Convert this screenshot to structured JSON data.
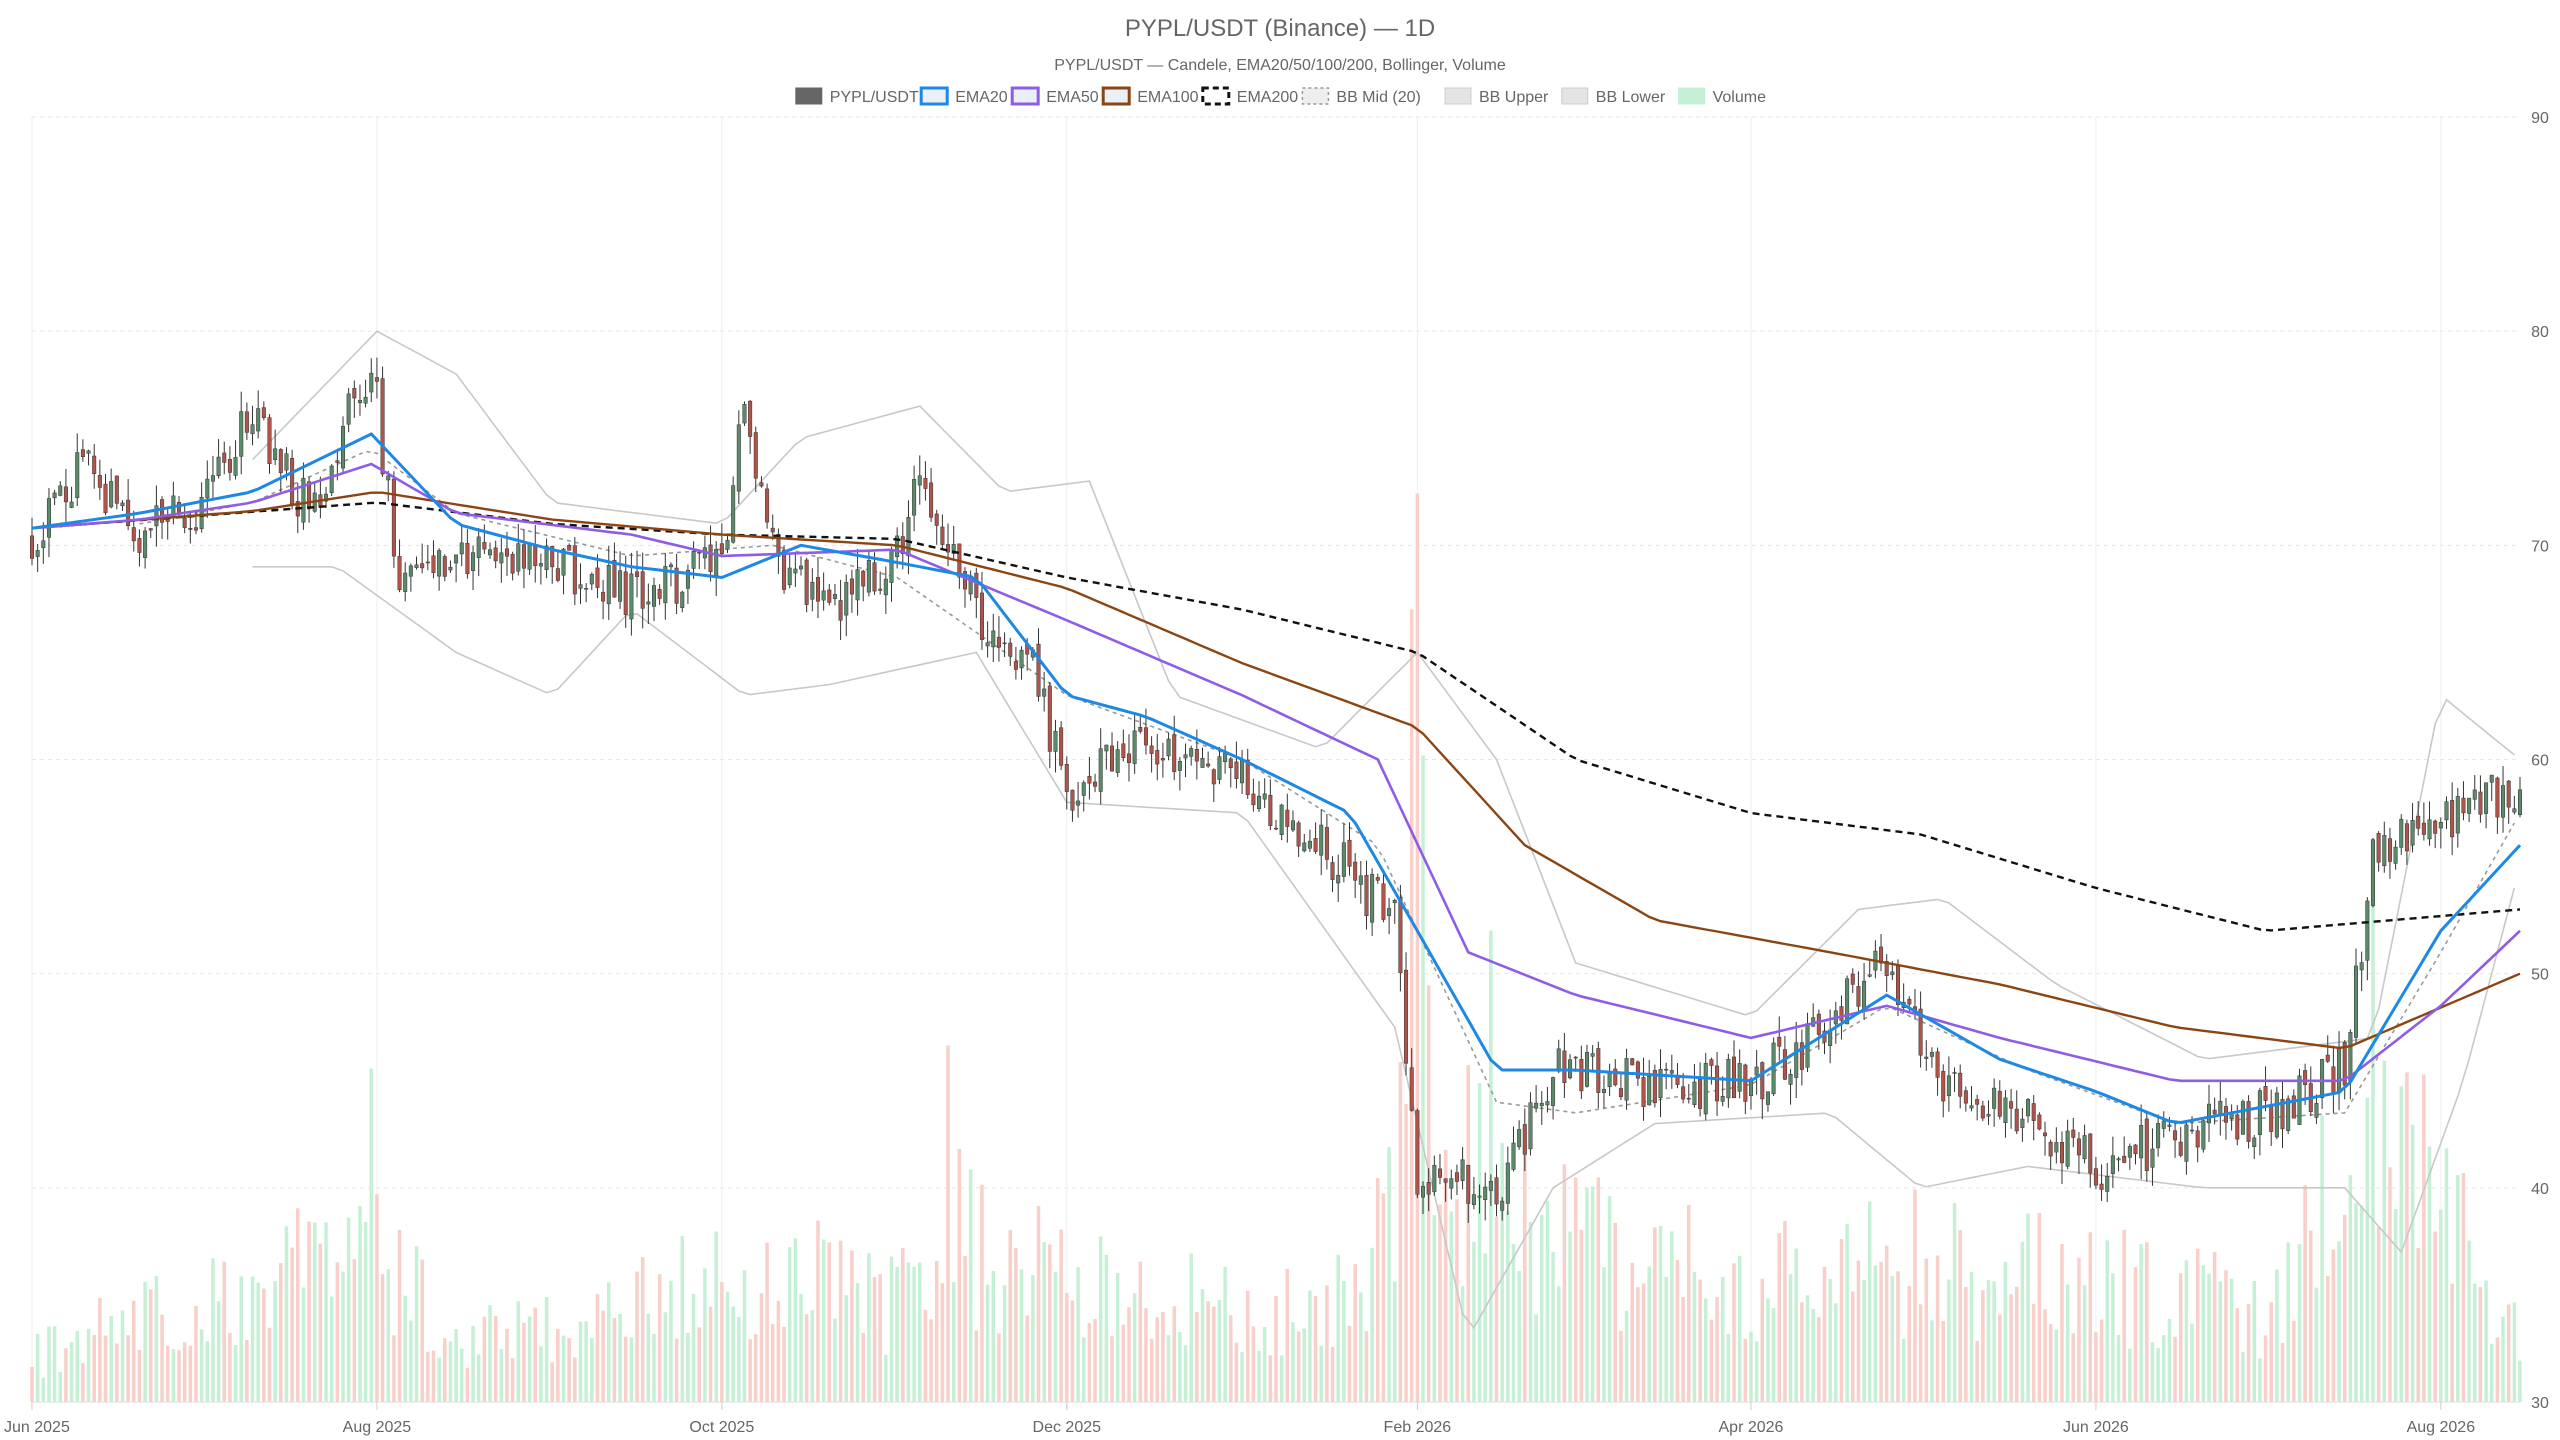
{
  "chart_data": {
    "type": "candlestick",
    "title": "PYPL/USDT (Binance) — 1D",
    "subtitle": "PYPL/USDT — Candele, EMA20/50/100/200, Bollinger, Volume",
    "legend": {
      "placement": "top-center",
      "items": [
        {
          "label": "PYPL/USDT",
          "swatch": "solid",
          "color": "#666666"
        },
        {
          "label": "EMA20",
          "swatch": "outline",
          "color": "#1e88e5"
        },
        {
          "label": "EMA50",
          "swatch": "outline",
          "color": "#8e5ce6"
        },
        {
          "label": "EMA100",
          "swatch": "outline",
          "color": "#8b4513"
        },
        {
          "label": "EMA200",
          "swatch": "dashed",
          "color": "#111111"
        },
        {
          "label": "BB Mid (20)",
          "swatch": "dotted",
          "color": "#999999"
        },
        {
          "label": "BB Upper",
          "swatch": "solid-light",
          "color": "#cccccc"
        },
        {
          "label": "BB Lower",
          "swatch": "solid-light",
          "color": "#cccccc"
        },
        {
          "label": "Volume",
          "swatch": "solid-green",
          "color": "#c6f0d5"
        }
      ]
    },
    "x_axis": {
      "ticks": [
        "Jun 2025",
        "Aug 2025",
        "Oct 2025",
        "Dec 2025",
        "Feb 2026",
        "Apr 2026",
        "Jun 2026",
        "Aug 2026"
      ],
      "range": [
        "2025-06-01",
        "2026-08-15"
      ]
    },
    "y_axis": {
      "position": "right",
      "ticks": [
        "30",
        "40",
        "50",
        "60",
        "70",
        "80",
        "90"
      ],
      "range": [
        30,
        90
      ]
    },
    "grid": true,
    "colors": {
      "up": "#5a8a6a",
      "down": "#b0544a",
      "wick": "#333333",
      "vol_up": "#c6f0d5",
      "vol_down": "#f8cfc9",
      "ema20": "#1e88e5",
      "ema50": "#8e5ce6",
      "ema100": "#8b4513",
      "ema200": "#111111",
      "bb_mid": "#999999",
      "bb_band": "#c8c8c8"
    },
    "price_path": [
      [
        "2025-06-01",
        70.5
      ],
      [
        "2025-06-10",
        73.5
      ],
      [
        "2025-06-20",
        70.8
      ],
      [
        "2025-07-01",
        72.0
      ],
      [
        "2025-07-10",
        76.5
      ],
      [
        "2025-07-20",
        71.5
      ],
      [
        "2025-07-31",
        78.5
      ],
      [
        "2025-08-05",
        68.5
      ],
      [
        "2025-08-20",
        69.8
      ],
      [
        "2025-09-01",
        69.2
      ],
      [
        "2025-09-15",
        67.5
      ],
      [
        "2025-10-01",
        69.0
      ],
      [
        "2025-10-05",
        76.5
      ],
      [
        "2025-10-10",
        69.5
      ],
      [
        "2025-10-20",
        67.0
      ],
      [
        "2025-11-01",
        69.5
      ],
      [
        "2025-11-05",
        73.5
      ],
      [
        "2025-11-15",
        67.0
      ],
      [
        "2025-11-25",
        64.0
      ],
      [
        "2025-12-01",
        58.5
      ],
      [
        "2025-12-15",
        61.0
      ],
      [
        "2026-01-01",
        59.0
      ],
      [
        "2026-01-15",
        56.0
      ],
      [
        "2026-01-28",
        52.5
      ],
      [
        "2026-02-01",
        40.5
      ],
      [
        "2026-02-15",
        40.0
      ],
      [
        "2026-02-25",
        45.5
      ],
      [
        "2026-03-15",
        44.8
      ],
      [
        "2026-04-01",
        45.0
      ],
      [
        "2026-04-10",
        46.5
      ],
      [
        "2026-04-25",
        50.5
      ],
      [
        "2026-05-05",
        45.0
      ],
      [
        "2026-05-20",
        43.5
      ],
      [
        "2026-06-01",
        41.0
      ],
      [
        "2026-06-15",
        42.5
      ],
      [
        "2026-07-01",
        43.5
      ],
      [
        "2026-07-15",
        45.5
      ],
      [
        "2026-07-20",
        55.5
      ],
      [
        "2026-08-01",
        57.0
      ],
      [
        "2026-08-15",
        59.0
      ]
    ],
    "ema20": [
      [
        "2025-06-01",
        70.8
      ],
      [
        "2025-06-20",
        71.5
      ],
      [
        "2025-07-10",
        72.5
      ],
      [
        "2025-07-31",
        75.2
      ],
      [
        "2025-08-15",
        71.0
      ],
      [
        "2025-09-01",
        69.8
      ],
      [
        "2025-09-15",
        69.0
      ],
      [
        "2025-10-01",
        68.5
      ],
      [
        "2025-10-15",
        70.0
      ],
      [
        "2025-11-01",
        69.2
      ],
      [
        "2025-11-15",
        68.5
      ],
      [
        "2025-12-01",
        63.0
      ],
      [
        "2025-12-15",
        62.0
      ],
      [
        "2026-01-01",
        60.0
      ],
      [
        "2026-01-20",
        57.5
      ],
      [
        "2026-02-01",
        52.0
      ],
      [
        "2026-02-15",
        45.5
      ],
      [
        "2026-03-01",
        45.5
      ],
      [
        "2026-04-01",
        45.0
      ],
      [
        "2026-04-25",
        49.0
      ],
      [
        "2026-05-15",
        46.0
      ],
      [
        "2026-06-01",
        44.5
      ],
      [
        "2026-06-15",
        43.0
      ],
      [
        "2026-07-15",
        44.5
      ],
      [
        "2026-08-01",
        52.0
      ],
      [
        "2026-08-15",
        56.0
      ]
    ],
    "ema50": [
      [
        "2025-06-01",
        70.8
      ],
      [
        "2025-06-20",
        71.2
      ],
      [
        "2025-07-10",
        72.0
      ],
      [
        "2025-07-31",
        73.8
      ],
      [
        "2025-08-15",
        71.5
      ],
      [
        "2025-09-15",
        70.5
      ],
      [
        "2025-10-01",
        69.5
      ],
      [
        "2025-11-01",
        69.8
      ],
      [
        "2025-12-01",
        66.5
      ],
      [
        "2026-01-01",
        63.0
      ],
      [
        "2026-01-25",
        60.0
      ],
      [
        "2026-02-10",
        51.0
      ],
      [
        "2026-03-01",
        49.0
      ],
      [
        "2026-04-01",
        47.0
      ],
      [
        "2026-04-25",
        48.5
      ],
      [
        "2026-05-15",
        47.0
      ],
      [
        "2026-06-15",
        45.0
      ],
      [
        "2026-07-15",
        45.0
      ],
      [
        "2026-08-01",
        48.5
      ],
      [
        "2026-08-15",
        52.0
      ]
    ],
    "ema100": [
      [
        "2025-06-01",
        70.8
      ],
      [
        "2025-07-10",
        71.6
      ],
      [
        "2025-08-01",
        72.5
      ],
      [
        "2025-09-01",
        71.2
      ],
      [
        "2025-10-01",
        70.5
      ],
      [
        "2025-11-01",
        70.0
      ],
      [
        "2025-12-01",
        68.0
      ],
      [
        "2026-01-01",
        64.5
      ],
      [
        "2026-02-01",
        61.5
      ],
      [
        "2026-02-20",
        56.0
      ],
      [
        "2026-03-15",
        52.5
      ],
      [
        "2026-04-15",
        51.0
      ],
      [
        "2026-05-15",
        49.5
      ],
      [
        "2026-06-15",
        47.5
      ],
      [
        "2026-07-15",
        46.5
      ],
      [
        "2026-08-15",
        50.0
      ]
    ],
    "ema200": [
      [
        "2025-06-01",
        70.8
      ],
      [
        "2025-08-01",
        72.0
      ],
      [
        "2025-09-01",
        71.0
      ],
      [
        "2025-10-01",
        70.5
      ],
      [
        "2025-11-01",
        70.3
      ],
      [
        "2025-12-01",
        68.5
      ],
      [
        "2026-01-01",
        67.0
      ],
      [
        "2026-02-01",
        65.0
      ],
      [
        "2026-03-01",
        60.0
      ],
      [
        "2026-04-01",
        57.5
      ],
      [
        "2026-05-01",
        56.5
      ],
      [
        "2026-06-01",
        54.0
      ],
      [
        "2026-07-01",
        52.0
      ],
      [
        "2026-08-15",
        53.0
      ]
    ],
    "bb_mid": [
      [
        "2025-06-20",
        71.0
      ],
      [
        "2025-07-10",
        72.0
      ],
      [
        "2025-07-31",
        74.5
      ],
      [
        "2025-08-15",
        71.5
      ],
      [
        "2025-09-15",
        69.5
      ],
      [
        "2025-10-10",
        70.0
      ],
      [
        "2025-11-01",
        68.5
      ],
      [
        "2025-12-01",
        63.0
      ],
      [
        "2026-01-01",
        60.0
      ],
      [
        "2026-01-25",
        56.0
      ],
      [
        "2026-02-15",
        44.0
      ],
      [
        "2026-03-01",
        43.5
      ],
      [
        "2026-04-01",
        44.8
      ],
      [
        "2026-04-25",
        48.5
      ],
      [
        "2026-05-20",
        45.5
      ],
      [
        "2026-06-15",
        43.0
      ],
      [
        "2026-07-15",
        43.5
      ],
      [
        "2026-08-01",
        51.0
      ],
      [
        "2026-08-15",
        57.5
      ]
    ],
    "bb_upper": [
      [
        "2025-07-10",
        74.0
      ],
      [
        "2025-08-01",
        80.0
      ],
      [
        "2025-08-15",
        78.0
      ],
      [
        "2025-09-01",
        72.0
      ],
      [
        "2025-10-01",
        71.0
      ],
      [
        "2025-10-15",
        75.0
      ],
      [
        "2025-11-05",
        76.5
      ],
      [
        "2025-11-20",
        72.5
      ],
      [
        "2025-12-05",
        73.0
      ],
      [
        "2025-12-20",
        63.0
      ],
      [
        "2026-01-15",
        60.5
      ],
      [
        "2026-02-01",
        65.0
      ],
      [
        "2026-02-15",
        60.0
      ],
      [
        "2026-03-01",
        50.5
      ],
      [
        "2026-04-01",
        48.0
      ],
      [
        "2026-04-20",
        53.0
      ],
      [
        "2026-05-05",
        53.5
      ],
      [
        "2026-05-25",
        49.5
      ],
      [
        "2026-06-20",
        46.0
      ],
      [
        "2026-07-20",
        47.0
      ],
      [
        "2026-08-01",
        63.0
      ],
      [
        "2026-08-15",
        60.0
      ]
    ],
    "bb_lower": [
      [
        "2025-07-10",
        69.0
      ],
      [
        "2025-07-25",
        69.0
      ],
      [
        "2025-08-15",
        65.0
      ],
      [
        "2025-09-01",
        63.0
      ],
      [
        "2025-09-15",
        67.0
      ],
      [
        "2025-10-05",
        63.0
      ],
      [
        "2025-10-20",
        63.5
      ],
      [
        "2025-11-15",
        65.0
      ],
      [
        "2025-12-01",
        58.0
      ],
      [
        "2026-01-01",
        57.5
      ],
      [
        "2026-01-28",
        47.5
      ],
      [
        "2026-02-10",
        33.0
      ],
      [
        "2026-02-25",
        40.0
      ],
      [
        "2026-03-15",
        43.0
      ],
      [
        "2026-04-15",
        43.5
      ],
      [
        "2026-05-01",
        40.0
      ],
      [
        "2026-05-20",
        41.0
      ],
      [
        "2026-06-20",
        40.0
      ],
      [
        "2026-07-15",
        40.0
      ],
      [
        "2026-07-25",
        37.0
      ],
      [
        "2026-08-05",
        45.0
      ],
      [
        "2026-08-15",
        55.0
      ]
    ],
    "volume": {
      "scale_max": 1.0,
      "anchors": [
        [
          "2025-06-01",
          0.04
        ],
        [
          "2025-07-31",
          0.14
        ],
        [
          "2025-08-15",
          0.06
        ],
        [
          "2025-09-15",
          0.08
        ],
        [
          "2025-10-10",
          0.12
        ],
        [
          "2025-11-01",
          0.08
        ],
        [
          "2025-11-10",
          0.14
        ],
        [
          "2025-12-10",
          0.09
        ],
        [
          "2026-01-15",
          0.08
        ],
        [
          "2026-01-28",
          0.17
        ],
        [
          "2026-02-01",
          0.62
        ],
        [
          "2026-02-05",
          0.18
        ],
        [
          "2026-02-15",
          0.2
        ],
        [
          "2026-03-01",
          0.13
        ],
        [
          "2026-04-01",
          0.1
        ],
        [
          "2026-05-01",
          0.12
        ],
        [
          "2026-06-01",
          0.1
        ],
        [
          "2026-07-01",
          0.08
        ],
        [
          "2026-07-20",
          0.26
        ],
        [
          "2026-08-15",
          0.06
        ]
      ],
      "spikes": [
        [
          "2025-07-31",
          0.29
        ],
        [
          "2025-11-10",
          0.31
        ],
        [
          "2025-11-12",
          0.22
        ],
        [
          "2026-02-01",
          0.79
        ],
        [
          "2026-02-14",
          0.41
        ],
        [
          "2026-07-20",
          0.48
        ]
      ]
    }
  }
}
